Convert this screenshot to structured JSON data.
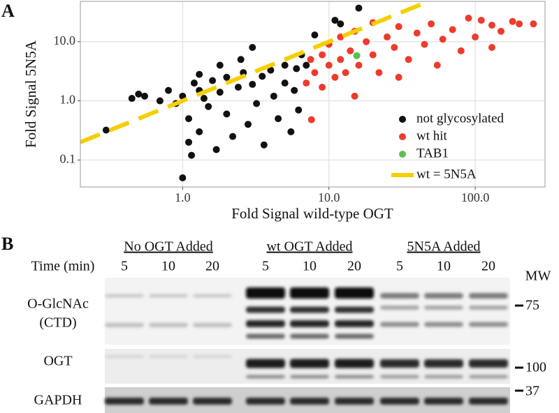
{
  "chart_data": {
    "type": "scatter",
    "panel_label": "A",
    "x_label": "Fold Signal wild-type OGT",
    "y_label": "Fold Signal 5N5A",
    "log_x": true,
    "log_y": true,
    "grid": true,
    "legend": "bottom-right",
    "xlim": [
      0.2,
      300
    ],
    "ylim": [
      0.035,
      48
    ],
    "xticks": [
      {
        "value": 1,
        "label": "1.0"
      },
      {
        "value": 10,
        "label": "10.0"
      },
      {
        "value": 100,
        "label": "100.0"
      }
    ],
    "yticks": [
      0.1,
      {
        "value": 1,
        "label": "1.0"
      },
      {
        "value": 10,
        "label": "10.0"
      }
    ],
    "series": [
      {
        "name": "not glycosylated",
        "color": "#111111",
        "x": [
          0.3,
          0.45,
          0.5,
          0.55,
          0.7,
          0.8,
          0.9,
          1.0,
          1.0,
          1.1,
          1.1,
          1.15,
          1.2,
          1.3,
          1.3,
          1.3,
          1.4,
          1.5,
          1.6,
          1.7,
          1.8,
          1.8,
          2.0,
          2.0,
          2.2,
          2.4,
          2.5,
          2.6,
          2.8,
          3.0,
          3.0,
          3.2,
          3.5,
          3.6,
          4.0,
          4.2,
          4.5,
          5.0,
          5.0,
          5.5,
          5.8,
          6.0,
          6.2,
          6.5,
          7.0,
          8.0,
          11,
          12,
          16
        ],
        "values": [
          0.32,
          1.1,
          1.3,
          1.2,
          1.0,
          1.5,
          0.9,
          1.2,
          0.05,
          0.5,
          0.2,
          0.12,
          2.0,
          1.5,
          0.3,
          2.8,
          1.1,
          0.8,
          2.2,
          0.15,
          1.4,
          4.0,
          2.5,
          0.6,
          0.25,
          1.7,
          5.0,
          3.0,
          0.4,
          1.9,
          8.0,
          0.9,
          2.6,
          0.18,
          3.3,
          1.2,
          0.5,
          4.0,
          2.0,
          0.3,
          1.5,
          3.5,
          0.7,
          6.0,
          4.0,
          13,
          23,
          20,
          37
        ]
      },
      {
        "name": "wt hit",
        "color": "#ee3b2b",
        "x": [
          7,
          7.5,
          7.6,
          8,
          9,
          9,
          10,
          10,
          11,
          12,
          12,
          13,
          14,
          15,
          15,
          16,
          18,
          20,
          20,
          22,
          25,
          28,
          30,
          30,
          35,
          40,
          45,
          50,
          55,
          60,
          70,
          80,
          90,
          100,
          110,
          130,
          130,
          150,
          180,
          200,
          250
        ],
        "values": [
          2,
          5,
          0.48,
          3,
          6,
          1.7,
          9,
          4,
          2.5,
          12,
          5,
          3,
          7,
          15,
          1.2,
          4,
          10,
          6,
          21,
          3,
          12,
          8,
          18,
          2.5,
          5,
          14,
          9,
          20,
          4,
          11,
          16,
          7,
          25,
          12,
          23,
          19,
          8,
          15,
          22,
          20,
          20
        ]
      },
      {
        "name": "TAB1",
        "color": "#5cc04a",
        "x": [
          15.5
        ],
        "values": [
          5.8
        ]
      }
    ],
    "reference": {
      "name": "wt = 5N5A",
      "color": "#f5cf00"
    }
  },
  "panel_b": {
    "label": "B",
    "time_label": "Time (min)",
    "mw_label": "MW",
    "groups": [
      {
        "label": "No OGT Added",
        "times": [
          "5",
          "10",
          "20"
        ]
      },
      {
        "label": "wt OGT Added",
        "times": [
          "5",
          "10",
          "20"
        ]
      },
      {
        "label": "5N5A  Added",
        "times": [
          "5",
          "10",
          "20"
        ]
      }
    ],
    "rows": [
      "O-GlcNAc",
      "(CTD)",
      "OGT",
      "GAPDH"
    ],
    "mw_markers": [
      "75",
      "100",
      "37"
    ]
  }
}
